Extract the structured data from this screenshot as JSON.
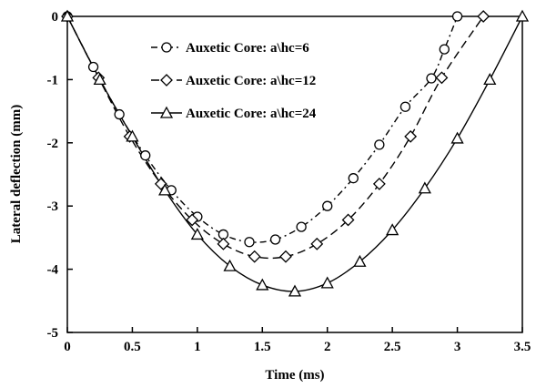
{
  "chart_data": {
    "type": "line",
    "title": "",
    "xlabel": "Time (ms)",
    "ylabel": "Lateral deflection (mm)",
    "xlim": [
      0,
      3.5
    ],
    "ylim": [
      -5,
      0
    ],
    "xticks": [
      0,
      0.5,
      1,
      1.5,
      2,
      2.5,
      3,
      3.5
    ],
    "xtick_labels": [
      "0",
      "0.5",
      "1",
      "1.5",
      "2",
      "2.5",
      "3",
      "3.5"
    ],
    "yticks": [
      0,
      -1,
      -2,
      -3,
      -4,
      -5
    ],
    "ytick_labels": [
      "0",
      "-1",
      "-2",
      "-3",
      "-4",
      "-5"
    ],
    "grid": false,
    "legend_position": "top-center",
    "series": [
      {
        "name": "Auxetic Core: a\\hc=6",
        "marker": "circle",
        "line_style": "dash-dot",
        "color": "#000000",
        "x": [
          0,
          0.2,
          0.4,
          0.6,
          0.8,
          1.0,
          1.2,
          1.4,
          1.6,
          1.8,
          2.0,
          2.2,
          2.4,
          2.6,
          2.8,
          2.9,
          3.0
        ],
        "y": [
          0,
          -0.8,
          -1.55,
          -2.2,
          -2.75,
          -3.17,
          -3.45,
          -3.57,
          -3.53,
          -3.33,
          -3.0,
          -2.56,
          -2.03,
          -1.43,
          -0.98,
          -0.52,
          0
        ]
      },
      {
        "name": "Auxetic Core: a\\hc=12",
        "marker": "diamond",
        "line_style": "dash",
        "color": "#000000",
        "x": [
          0,
          0.24,
          0.48,
          0.72,
          0.96,
          1.2,
          1.44,
          1.68,
          1.92,
          2.16,
          2.4,
          2.64,
          2.88,
          3.2
        ],
        "y": [
          0,
          -0.97,
          -1.9,
          -2.65,
          -3.22,
          -3.6,
          -3.8,
          -3.8,
          -3.6,
          -3.22,
          -2.65,
          -1.9,
          -0.97,
          0
        ]
      },
      {
        "name": "Auxetic Core: a\\hc=24",
        "marker": "triangle",
        "line_style": "solid",
        "color": "#000000",
        "x": [
          0,
          0.25,
          0.5,
          0.75,
          1.0,
          1.25,
          1.5,
          1.75,
          2.0,
          2.25,
          2.5,
          2.75,
          3.0,
          3.25,
          3.5
        ],
        "y": [
          0,
          -1.0,
          -1.9,
          -2.75,
          -3.45,
          -3.95,
          -4.25,
          -4.35,
          -4.22,
          -3.88,
          -3.38,
          -2.72,
          -1.93,
          -1.0,
          0
        ]
      }
    ]
  }
}
